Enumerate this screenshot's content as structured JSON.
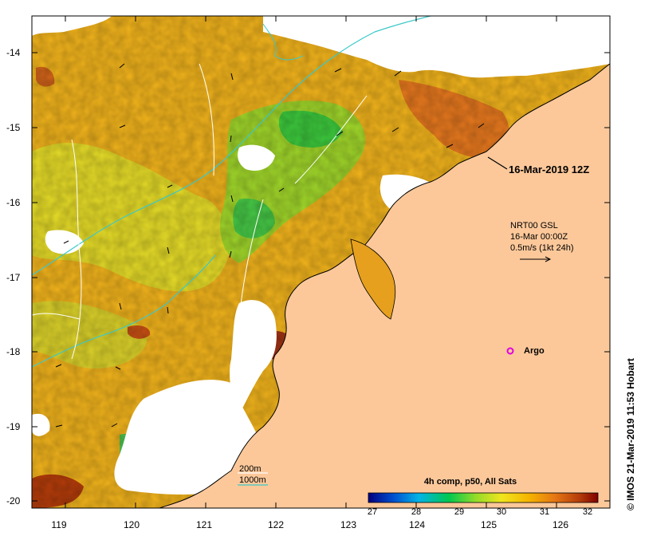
{
  "map": {
    "y_ticks": [
      "-14",
      "-15",
      "-16",
      "-17",
      "-18",
      "-19",
      "-20"
    ],
    "x_ticks": [
      "119",
      "120",
      "121",
      "122",
      "123",
      "124",
      "125",
      "126"
    ],
    "date_label": "16-Mar-2019 12Z",
    "current_info": {
      "line1": "NRT00 GSL",
      "line2": "16-Mar 00:00Z",
      "line3": "0.5m/s (1kt 24h)"
    },
    "argo_label": "Argo",
    "colors": {
      "land": "#fcc89a",
      "coast": "#000000",
      "cloud": "#ffffff",
      "isobath": "#3cc8c8",
      "contour": "#ffffff",
      "argo": "#e000e0"
    },
    "scale_labels": [
      "200m",
      "1000m"
    ]
  },
  "colorbar": {
    "title": "4h comp, p50, All Sats",
    "ticks": [
      "27",
      "28",
      "29",
      "30",
      "31",
      "32"
    ],
    "stops": [
      "#000080",
      "#0050d0",
      "#00b4e6",
      "#00c850",
      "#96dc28",
      "#f0e61e",
      "#f5b400",
      "#e67814",
      "#b43c0a",
      "#800000"
    ]
  },
  "credit": "© IMOS 21-Mar-2019 11:53 Hobart"
}
